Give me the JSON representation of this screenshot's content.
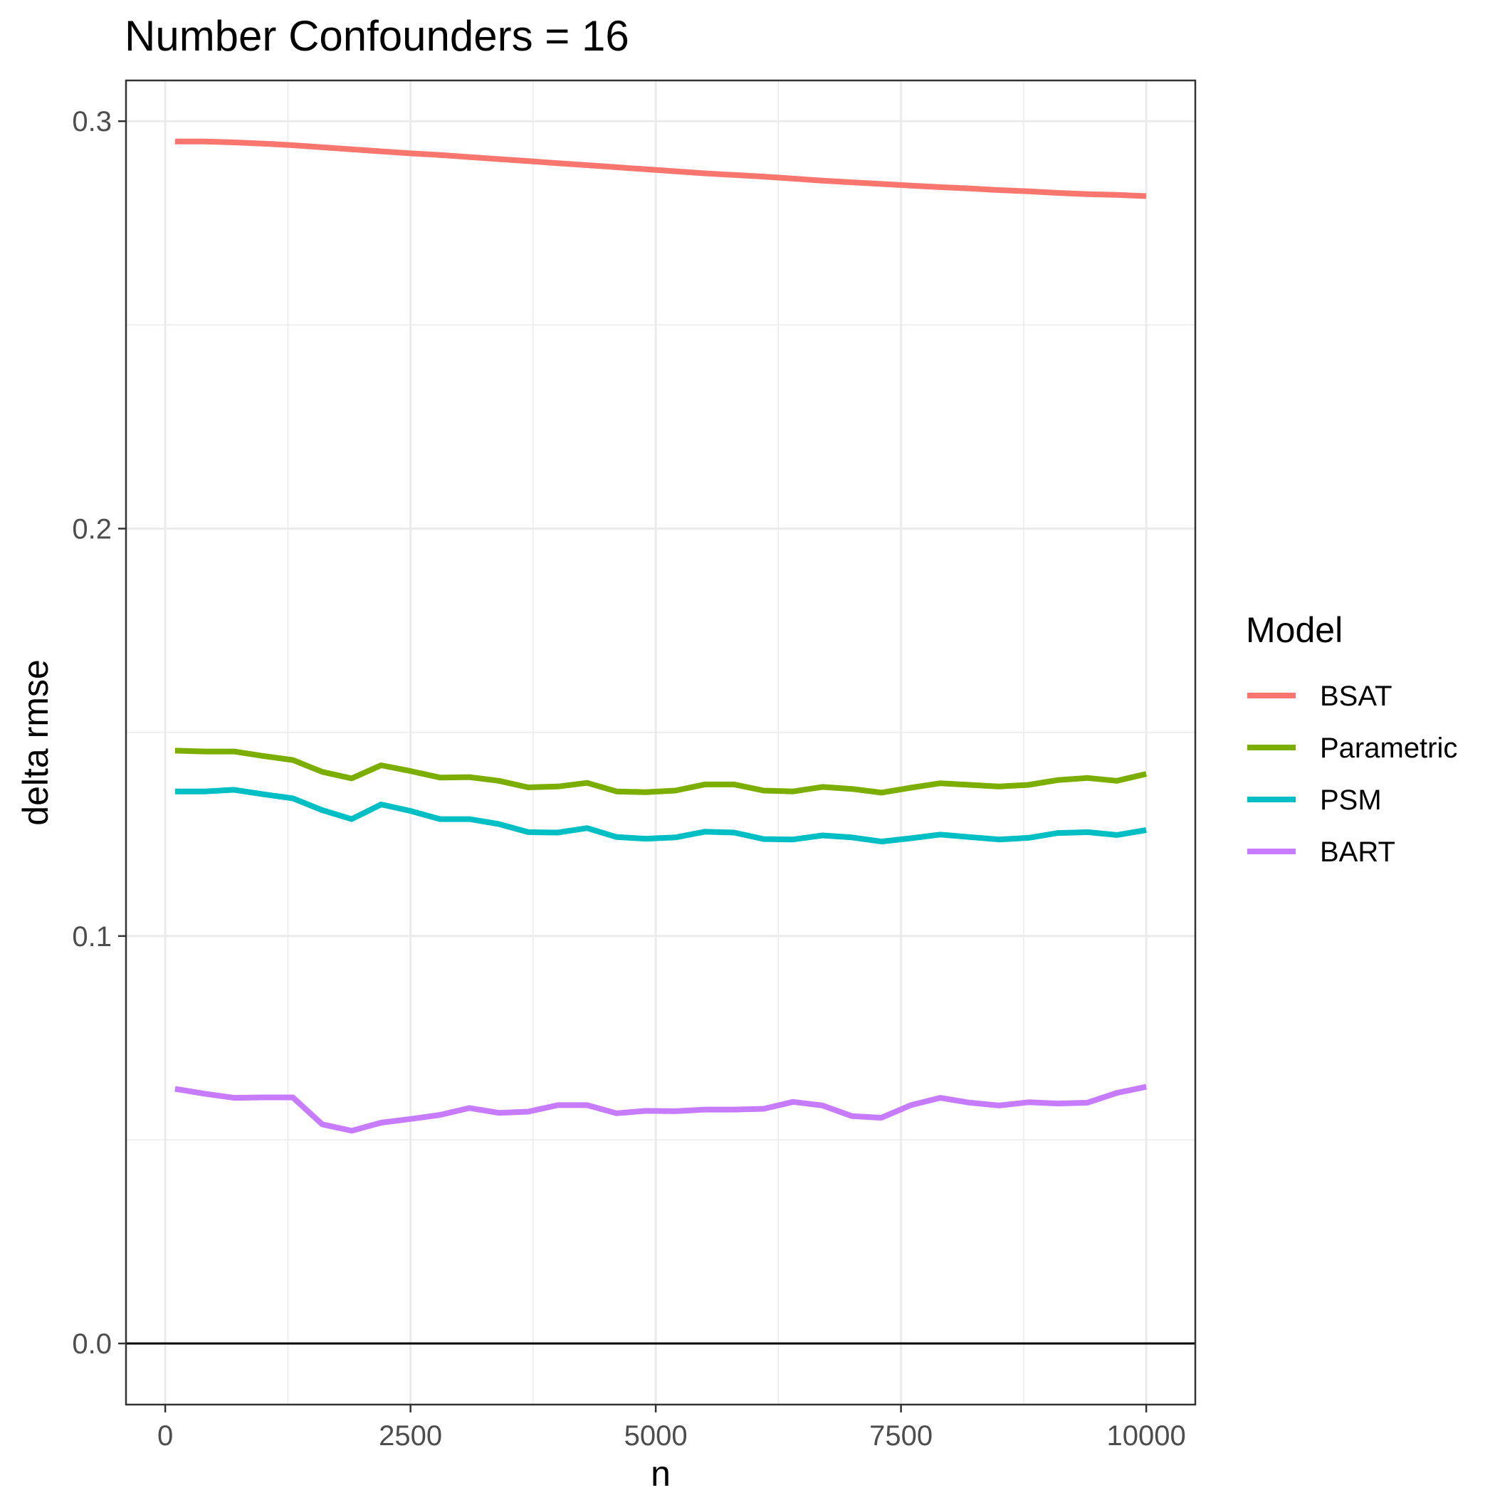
{
  "chart_data": {
    "type": "line",
    "title": "Number Confounders = 16",
    "xlabel": "n",
    "ylabel": "delta rmse",
    "xlim": [
      -400,
      10500
    ],
    "ylim": [
      -0.015,
      0.31
    ],
    "x_ticks": [
      0,
      2500,
      5000,
      7500,
      10000
    ],
    "x_tick_labels": [
      "0",
      "2500",
      "5000",
      "7500",
      "10000"
    ],
    "y_ticks": [
      0.0,
      0.1,
      0.2,
      0.3
    ],
    "y_tick_labels": [
      "0.0",
      "0.1",
      "0.2",
      "0.3"
    ],
    "grid": true,
    "hline": 0,
    "legend_title": "Model",
    "legend_position": "right",
    "x": [
      100,
      400,
      700,
      1000,
      1300,
      1600,
      1900,
      2200,
      2500,
      2800,
      3100,
      3400,
      3700,
      4000,
      4300,
      4600,
      4900,
      5200,
      5500,
      5800,
      6100,
      6400,
      6700,
      7000,
      7300,
      7600,
      7900,
      8200,
      8500,
      8800,
      9100,
      9400,
      9700,
      10000
    ],
    "series": [
      {
        "name": "BSAT",
        "color": "#F8766D",
        "values": [
          0.295,
          0.295,
          0.2948,
          0.2945,
          0.2941,
          0.2936,
          0.2931,
          0.2926,
          0.2921,
          0.2917,
          0.2912,
          0.2907,
          0.2902,
          0.2897,
          0.2892,
          0.2887,
          0.2882,
          0.2877,
          0.2872,
          0.2868,
          0.2864,
          0.2859,
          0.2854,
          0.285,
          0.2846,
          0.2842,
          0.2838,
          0.2835,
          0.2831,
          0.2828,
          0.2824,
          0.2821,
          0.2819,
          0.2816
        ]
      },
      {
        "name": "Parametric",
        "color": "#7CAE00",
        "values": [
          0.1455,
          0.1453,
          0.1453,
          0.1442,
          0.1432,
          0.1403,
          0.1387,
          0.1419,
          0.1405,
          0.1389,
          0.139,
          0.1381,
          0.1365,
          0.1367,
          0.1376,
          0.1355,
          0.1353,
          0.1357,
          0.1372,
          0.1372,
          0.1357,
          0.1355,
          0.1366,
          0.1361,
          0.1352,
          0.1364,
          0.1375,
          0.1371,
          0.1367,
          0.1371,
          0.1383,
          0.1388,
          0.1381,
          0.1398
        ]
      },
      {
        "name": "PSM",
        "color": "#00BFC4",
        "values": [
          0.1355,
          0.1355,
          0.1359,
          0.1348,
          0.1338,
          0.1309,
          0.1287,
          0.1323,
          0.1307,
          0.1287,
          0.1287,
          0.1275,
          0.1255,
          0.1254,
          0.1265,
          0.1243,
          0.1239,
          0.1242,
          0.1256,
          0.1254,
          0.1238,
          0.1237,
          0.1247,
          0.1242,
          0.1232,
          0.124,
          0.1249,
          0.1243,
          0.1237,
          0.1241,
          0.1253,
          0.1255,
          0.1248,
          0.126
        ]
      },
      {
        "name": "BART",
        "color": "#C77CFF",
        "values": [
          0.0625,
          0.0613,
          0.0603,
          0.0604,
          0.0604,
          0.0538,
          0.0522,
          0.0542,
          0.0551,
          0.0561,
          0.0578,
          0.0566,
          0.0569,
          0.0585,
          0.0585,
          0.0565,
          0.0571,
          0.057,
          0.0574,
          0.0574,
          0.0576,
          0.0593,
          0.0584,
          0.0558,
          0.0554,
          0.0585,
          0.0603,
          0.0591,
          0.0584,
          0.0592,
          0.0589,
          0.0591,
          0.0615,
          0.063
        ]
      }
    ]
  }
}
